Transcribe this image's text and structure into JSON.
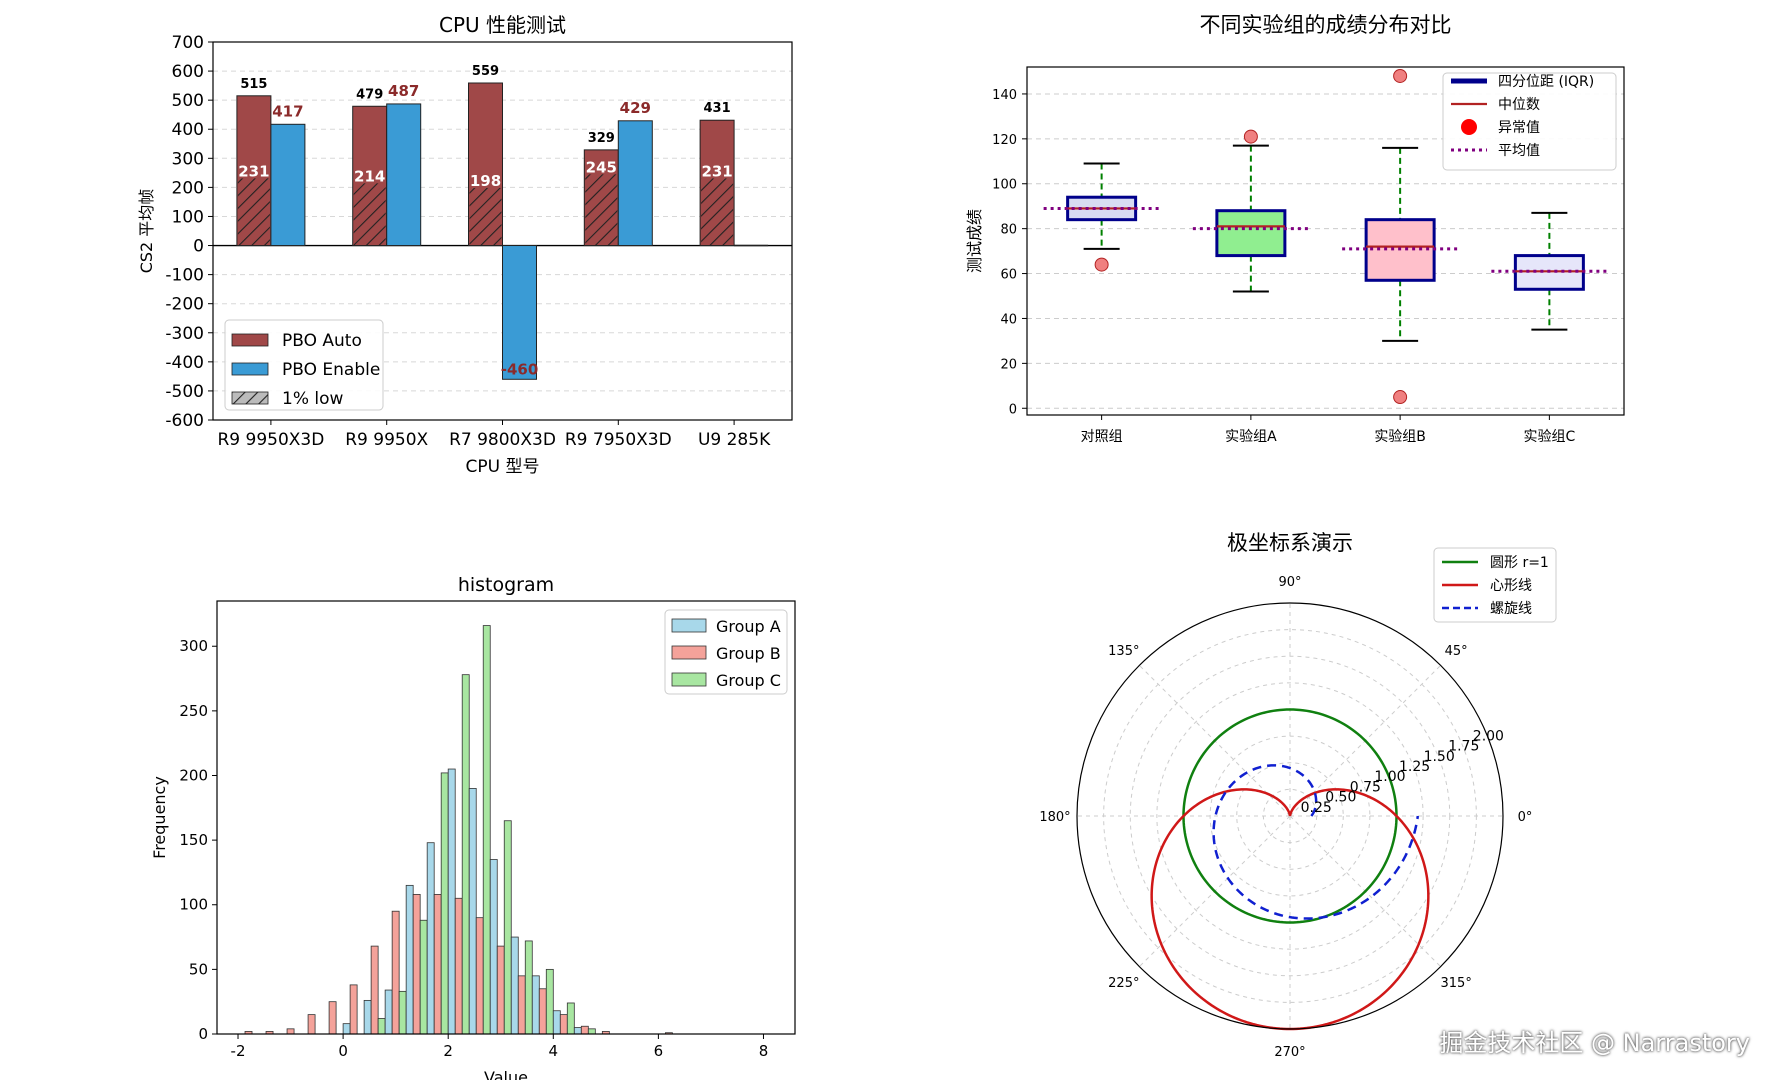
{
  "watermark": "掘金技术社区 @ Narrastory",
  "chart_data": [
    {
      "type": "bar",
      "title": "CPU 性能测试",
      "xlabel": "CPU 型号",
      "ylabel": "CS2 平均帧",
      "ylim": [
        -600,
        700
      ],
      "yticks": [
        -600,
        -500,
        -400,
        -300,
        -200,
        -100,
        0,
        100,
        200,
        300,
        400,
        500,
        600,
        700
      ],
      "grid": true,
      "categories": [
        "R9 9950X3D",
        "R9 9950X",
        "R7 9800X3D",
        "R9 7950X3D",
        "U9 285K"
      ],
      "series": [
        {
          "name": "PBO Auto",
          "values": [
            515,
            479,
            559,
            329,
            431
          ],
          "color": "#a04848"
        },
        {
          "name": "PBO Enable",
          "values": [
            417,
            487,
            -460,
            429,
            0
          ],
          "color": "#3a9bd5"
        },
        {
          "name": "1% low",
          "values": [
            231,
            214,
            198,
            245,
            231
          ],
          "color": "#888888"
        }
      ],
      "data_labels": {
        "auto": [
          "515",
          "479",
          "559",
          "329",
          "431"
        ],
        "enable": [
          "417",
          "487",
          "-460",
          "429",
          null
        ],
        "low": [
          "231",
          "214",
          "198",
          "245",
          "231"
        ]
      },
      "label_color": "#8b2a2a",
      "legend": "bottom-left"
    },
    {
      "type": "box",
      "title": "不同实验组的成绩分布对比",
      "ylabel": "测试成绩",
      "ylim": [
        0,
        150
      ],
      "yticks": [
        0,
        20,
        40,
        60,
        80,
        100,
        120,
        140
      ],
      "grid": true,
      "categories": [
        "对照组",
        "实验组A",
        "实验组B",
        "实验组C"
      ],
      "boxes": [
        {
          "whisker_low": 71,
          "q1": 84,
          "median": 89,
          "q3": 94,
          "whisker_high": 109,
          "mean": 89,
          "outliers": [
            64
          ],
          "color": "#d8dcf2"
        },
        {
          "whisker_low": 52,
          "q1": 68,
          "median": 81,
          "q3": 88,
          "whisker_high": 117,
          "mean": 80,
          "outliers": [
            121
          ],
          "color": "#90ee90"
        },
        {
          "whisker_low": 30,
          "q1": 57,
          "median": 72,
          "q3": 84,
          "whisker_high": 116,
          "mean": 71,
          "outliers": [
            148,
            5
          ],
          "color": "#ffc0cb"
        },
        {
          "whisker_low": 35,
          "q1": 53,
          "median": 61,
          "q3": 68,
          "whisker_high": 87,
          "mean": 61,
          "outliers": [],
          "color": "#e6e6fa"
        }
      ],
      "legend_entries": [
        "四分位距 (IQR)",
        "中位数",
        "异常值",
        "平均值"
      ],
      "legend": "top-right"
    },
    {
      "type": "histogram",
      "title": "histogram",
      "xlabel": "Value",
      "ylabel": "Frequency",
      "xlim": [
        -2.4,
        8.6
      ],
      "ylim": [
        0,
        335
      ],
      "xticks": [
        -2,
        0,
        2,
        4,
        6,
        8
      ],
      "yticks": [
        0,
        50,
        100,
        150,
        200,
        250,
        300
      ],
      "bins": [
        -2.0,
        -1.6,
        -1.2,
        -0.8,
        -0.4,
        0.0,
        0.4,
        0.8,
        1.2,
        1.6,
        2.0,
        2.4,
        2.8,
        3.2,
        3.6,
        4.0,
        4.4,
        4.8,
        5.2,
        5.6,
        6.0,
        6.4,
        6.8,
        7.2,
        7.6,
        8.0
      ],
      "series": [
        {
          "name": "Group A",
          "color": "#a8d8ea",
          "values": [
            0,
            0,
            0,
            0,
            0,
            8,
            26,
            34,
            115,
            148,
            205,
            190,
            135,
            75,
            45,
            18,
            5,
            0,
            0,
            0,
            0,
            0,
            0,
            0,
            0
          ]
        },
        {
          "name": "Group B",
          "color": "#f4a29a",
          "values": [
            2,
            2,
            4,
            15,
            25,
            38,
            68,
            95,
            108,
            108,
            105,
            90,
            68,
            45,
            35,
            15,
            6,
            2,
            0,
            0,
            1,
            0,
            0,
            0,
            0
          ]
        },
        {
          "name": "Group C",
          "color": "#a8e6a1",
          "values": [
            0,
            0,
            0,
            0,
            0,
            0,
            12,
            33,
            88,
            202,
            278,
            316,
            165,
            72,
            50,
            24,
            4,
            0,
            0,
            0,
            0,
            0,
            0,
            0,
            0
          ]
        }
      ],
      "legend": "top-right"
    },
    {
      "type": "polar",
      "title": "极坐标系演示",
      "rmax": 2.0,
      "rticks": [
        "0.25",
        "0.50",
        "0.75",
        "1.00",
        "1.25",
        "1.50",
        "1.75",
        "2.00"
      ],
      "angle_labels": [
        "0°",
        "45°",
        "90°",
        "135°",
        "180°",
        "225°",
        "270°",
        "315°"
      ],
      "series": [
        {
          "name": "圆形 r=1",
          "formula": "r = 1",
          "color": "#108010"
        },
        {
          "name": "心形线",
          "formula": "r = 1 - sin(θ)",
          "color": "#d01818"
        },
        {
          "name": "螺旋线",
          "formula": "r = 0.2 + θ/(2π)",
          "color": "#1020d0"
        }
      ],
      "legend": "top-right"
    }
  ]
}
